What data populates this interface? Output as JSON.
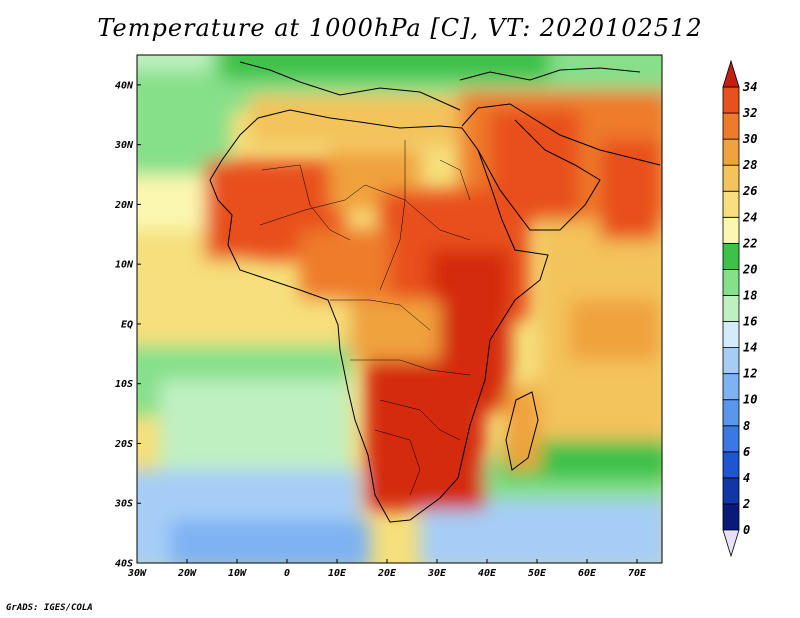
{
  "title": "Temperature at 1000hPa [C], VT: 2020102512",
  "credit": "GrADS: IGES/COLA",
  "map": {
    "projection": "latlon",
    "lon_range": [
      -30,
      75
    ],
    "lat_range": [
      -40,
      45
    ],
    "lon_ticks": [
      {
        "value": -30,
        "label": "30W"
      },
      {
        "value": -20,
        "label": "20W"
      },
      {
        "value": -10,
        "label": "10W"
      },
      {
        "value": 0,
        "label": "0"
      },
      {
        "value": 10,
        "label": "10E"
      },
      {
        "value": 20,
        "label": "20E"
      },
      {
        "value": 30,
        "label": "30E"
      },
      {
        "value": 40,
        "label": "40E"
      },
      {
        "value": 50,
        "label": "50E"
      },
      {
        "value": 60,
        "label": "60E"
      },
      {
        "value": 70,
        "label": "70E"
      }
    ],
    "lat_ticks": [
      {
        "value": 40,
        "label": "40N"
      },
      {
        "value": 30,
        "label": "30N"
      },
      {
        "value": 20,
        "label": "20N"
      },
      {
        "value": 10,
        "label": "10N"
      },
      {
        "value": 0,
        "label": "EQ"
      },
      {
        "value": -10,
        "label": "10S"
      },
      {
        "value": -20,
        "label": "20S"
      },
      {
        "value": -30,
        "label": "30S"
      },
      {
        "value": -40,
        "label": "40S"
      }
    ]
  },
  "colorbar": {
    "levels": [
      0,
      2,
      4,
      6,
      8,
      10,
      12,
      14,
      16,
      18,
      20,
      22,
      24,
      26,
      28,
      30,
      32,
      34
    ],
    "labels": [
      "0",
      "2",
      "4",
      "6",
      "8",
      "10",
      "12",
      "14",
      "16",
      "18",
      "20",
      "22",
      "24",
      "26",
      "28",
      "30",
      "32",
      "34"
    ],
    "colors": [
      "#0a1a78",
      "#1236a8",
      "#1f55d2",
      "#3a78e6",
      "#5a96ec",
      "#7eb2f2",
      "#a6cdf6",
      "#d4ecfa",
      "#bff0c2",
      "#86e08a",
      "#3ec148",
      "#fbf7b0",
      "#f6df7c",
      "#f3c35c",
      "#f0a23e",
      "#ee7b2c",
      "#e8501e",
      "#d42c10"
    ],
    "under_color": "#e6e0fa",
    "over_color": "#c41e0e"
  }
}
